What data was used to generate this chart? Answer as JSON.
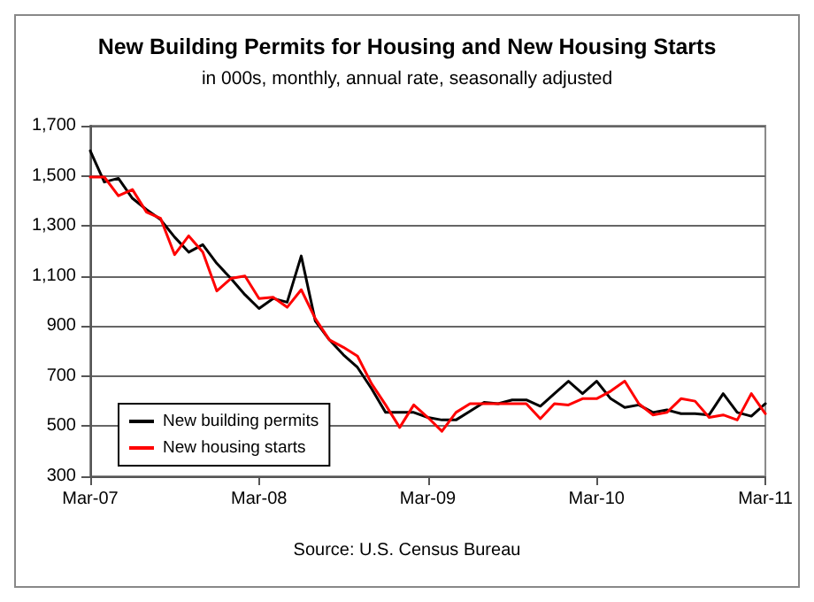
{
  "chart_data": {
    "type": "line",
    "title": "New Building Permits for Housing and New Housing Starts",
    "subtitle": "in 000s, monthly, annual rate, seasonally adjusted",
    "annotations": [
      "Source: U.S. Census Bureau"
    ],
    "categories": [
      "Mar-07",
      null,
      null,
      null,
      null,
      null,
      null,
      null,
      null,
      null,
      null,
      null,
      "Mar-08",
      null,
      null,
      null,
      null,
      null,
      null,
      null,
      null,
      null,
      null,
      null,
      "Mar-09",
      null,
      null,
      null,
      null,
      null,
      null,
      null,
      null,
      null,
      null,
      null,
      "Mar-10",
      null,
      null,
      null,
      null,
      null,
      null,
      null,
      null,
      null,
      null,
      null,
      "Mar-11"
    ],
    "series": [
      {
        "name": "New building permits",
        "color": "#000000",
        "values": [
          1600,
          1475,
          1490,
          1410,
          1365,
          1325,
          1255,
          1195,
          1225,
          1150,
          1090,
          1025,
          970,
          1010,
          995,
          1180,
          920,
          845,
          785,
          735,
          650,
          555,
          555,
          555,
          535,
          525,
          525,
          560,
          595,
          590,
          605,
          605,
          580,
          630,
          680,
          630,
          680,
          610,
          575,
          585,
          555,
          565,
          550,
          550,
          545,
          630,
          555,
          540,
          590
        ]
      },
      {
        "name": "New housing starts",
        "color": "#ff0000",
        "values": [
          1495,
          1495,
          1420,
          1445,
          1355,
          1330,
          1185,
          1260,
          1195,
          1040,
          1090,
          1100,
          1010,
          1015,
          975,
          1045,
          930,
          845,
          815,
          780,
          670,
          585,
          495,
          585,
          535,
          480,
          555,
          590,
          590,
          590,
          590,
          590,
          530,
          590,
          585,
          610,
          610,
          640,
          680,
          590,
          545,
          555,
          610,
          600,
          535,
          545,
          525,
          630,
          550
        ]
      }
    ],
    "ylim": [
      300,
      1700
    ],
    "yticks": [
      {
        "value": 300,
        "label": "300"
      },
      {
        "value": 500,
        "label": "500"
      },
      {
        "value": 700,
        "label": "700"
      },
      {
        "value": 900,
        "label": "900"
      },
      {
        "value": 1100,
        "label": "1,100"
      },
      {
        "value": 1300,
        "label": "1,300"
      },
      {
        "value": 1500,
        "label": "1,500"
      },
      {
        "value": 1700,
        "label": "1,700"
      }
    ],
    "grid": "y",
    "legend": "bottom left",
    "marker": "none",
    "line_style": "solid"
  }
}
